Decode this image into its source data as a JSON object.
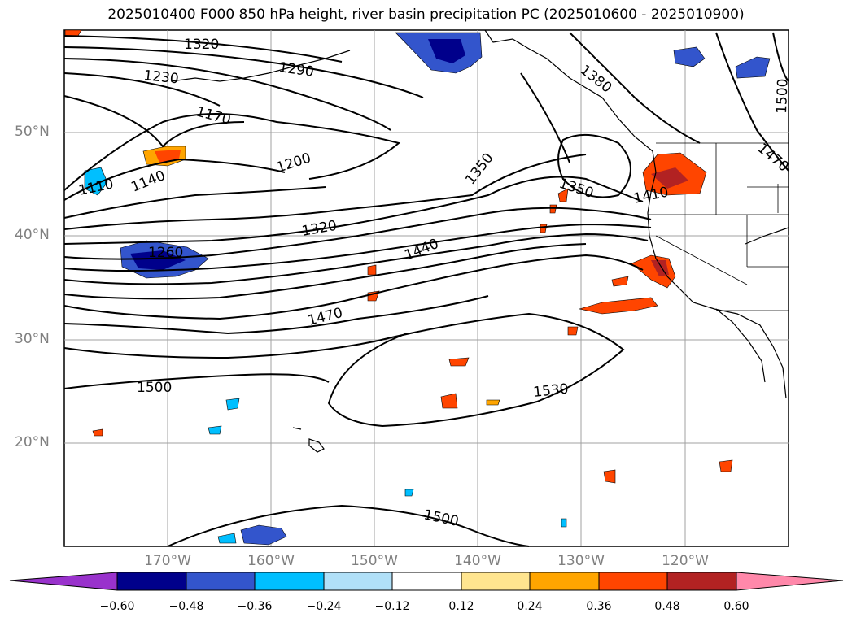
{
  "title": "2025010400 F000 850 hPa height, river basin precipitation PC (2025010600 - 2025010900)",
  "lat_labels": [
    "50°N",
    "40°N",
    "30°N",
    "20°N"
  ],
  "lon_labels": [
    "170°W",
    "160°W",
    "150°W",
    "140°W",
    "130°W",
    "120°W"
  ],
  "contour_labels": [
    "1320",
    "1290",
    "1230",
    "1170",
    "1110",
    "1140",
    "1200",
    "1260",
    "1320",
    "1350",
    "1380",
    "1500",
    "1470",
    "1350",
    "1410",
    "1440",
    "1470",
    "1500",
    "1530",
    "1500"
  ],
  "colorbar": {
    "ticks": [
      "−0.60",
      "−0.48",
      "−0.36",
      "−0.24",
      "−0.12",
      "0.12",
      "0.24",
      "0.36",
      "0.48",
      "0.60"
    ],
    "colors": [
      "#9932cc",
      "#00008b",
      "#3355cc",
      "#00bfff",
      "#b0e0f8",
      "#ffffff",
      "#ffe58f",
      "#ffa500",
      "#ff4500",
      "#b22222",
      "#ff88aa"
    ]
  }
}
